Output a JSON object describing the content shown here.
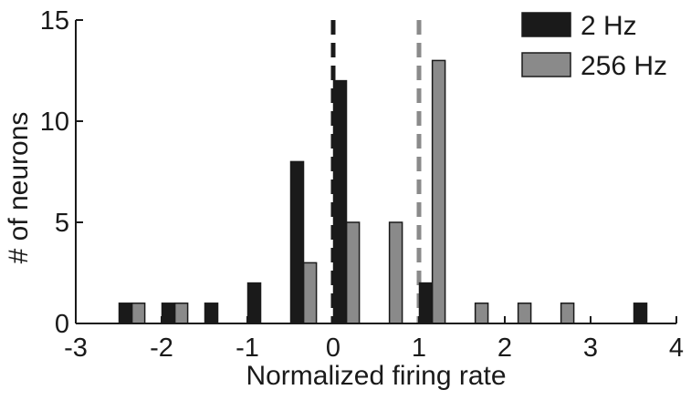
{
  "chart_data": {
    "type": "bar",
    "xlabel": "Normalized firing rate",
    "ylabel": "# of neurons",
    "xlim": [
      -3,
      4
    ],
    "ylim": [
      0,
      15
    ],
    "xticks": [
      -3,
      -2,
      -1,
      0,
      1,
      2,
      3,
      4
    ],
    "yticks": [
      0,
      5,
      10,
      15
    ],
    "legend_position": "top-right",
    "grid": false,
    "series": [
      {
        "name": "2 Hz",
        "color": "#1a1a1a",
        "bins": [
          -2.42,
          -1.92,
          -1.42,
          -0.92,
          -0.42,
          0.08,
          1.08,
          3.58
        ],
        "values": [
          1,
          1,
          1,
          2,
          8,
          12,
          2,
          1
        ]
      },
      {
        "name": "256 Hz",
        "color": "#8a8a8a",
        "bins": [
          -2.27,
          -1.77,
          -0.27,
          0.23,
          0.73,
          1.23,
          1.73,
          2.23,
          2.73
        ],
        "values": [
          1,
          1,
          3,
          5,
          5,
          13,
          1,
          1,
          1
        ]
      }
    ],
    "reference_lines": [
      {
        "x": 0,
        "color": "#1a1a1a",
        "style": "dashed",
        "series": "2 Hz"
      },
      {
        "x": 1,
        "color": "#8a8a8a",
        "style": "dashed",
        "series": "256 Hz"
      }
    ]
  }
}
